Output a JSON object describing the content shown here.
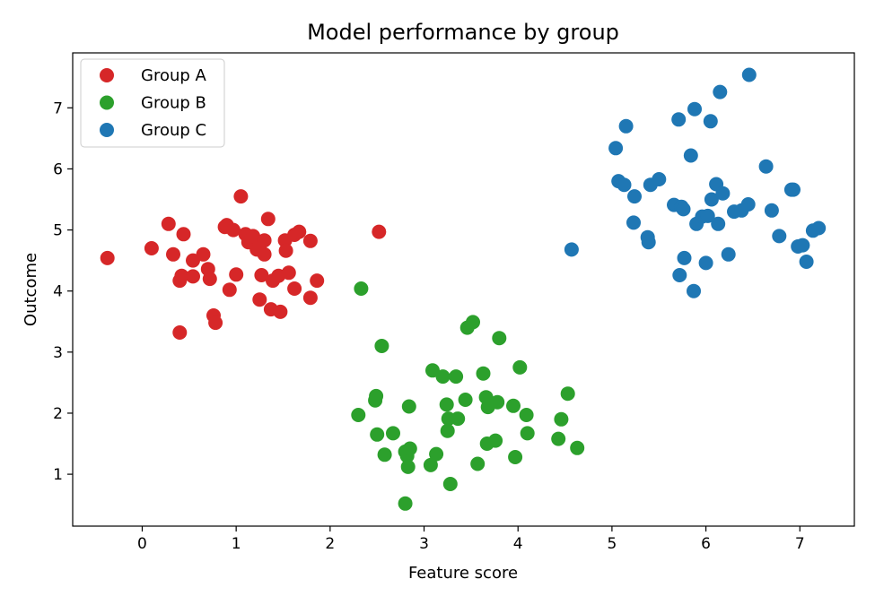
{
  "chart_data": {
    "type": "scatter",
    "title": "Model performance by group",
    "xlabel": "Feature score",
    "ylabel": "Outcome",
    "xlim": [
      -0.74,
      7.58
    ],
    "ylim": [
      0.15,
      7.9
    ],
    "xticks": [
      0,
      1,
      2,
      3,
      4,
      5,
      6,
      7
    ],
    "yticks": [
      1,
      2,
      3,
      4,
      5,
      6,
      7
    ],
    "grid": false,
    "legend_position": "top-left",
    "series": [
      {
        "name": "Group A",
        "color": "#d62728",
        "points": [
          [
            -0.37,
            4.54
          ],
          [
            0.1,
            4.7
          ],
          [
            0.28,
            5.1
          ],
          [
            0.33,
            4.6
          ],
          [
            0.4,
            4.17
          ],
          [
            0.42,
            4.25
          ],
          [
            0.44,
            4.93
          ],
          [
            0.4,
            3.32
          ],
          [
            0.54,
            4.5
          ],
          [
            0.54,
            4.24
          ],
          [
            0.65,
            4.6
          ],
          [
            0.7,
            4.36
          ],
          [
            0.72,
            4.2
          ],
          [
            0.76,
            3.6
          ],
          [
            0.78,
            3.48
          ],
          [
            0.88,
            5.05
          ],
          [
            0.9,
            5.08
          ],
          [
            0.93,
            4.02
          ],
          [
            0.97,
            5.0
          ],
          [
            1.0,
            4.27
          ],
          [
            1.05,
            5.55
          ],
          [
            1.1,
            4.93
          ],
          [
            1.13,
            4.8
          ],
          [
            1.18,
            4.9
          ],
          [
            1.22,
            4.68
          ],
          [
            1.25,
            4.75
          ],
          [
            1.25,
            3.86
          ],
          [
            1.27,
            4.26
          ],
          [
            1.3,
            4.83
          ],
          [
            1.3,
            4.6
          ],
          [
            1.34,
            5.18
          ],
          [
            1.37,
            3.7
          ],
          [
            1.39,
            4.17
          ],
          [
            1.45,
            4.25
          ],
          [
            1.47,
            3.66
          ],
          [
            1.52,
            4.83
          ],
          [
            1.53,
            4.66
          ],
          [
            1.56,
            4.3
          ],
          [
            1.62,
            4.04
          ],
          [
            1.62,
            4.92
          ],
          [
            1.67,
            4.97
          ],
          [
            1.79,
            4.82
          ],
          [
            1.79,
            3.89
          ],
          [
            1.86,
            4.17
          ],
          [
            2.52,
            4.97
          ]
        ]
      },
      {
        "name": "Group B",
        "color": "#2ca02c",
        "points": [
          [
            2.3,
            1.97
          ],
          [
            2.33,
            4.04
          ],
          [
            2.48,
            2.21
          ],
          [
            2.49,
            2.28
          ],
          [
            2.5,
            1.65
          ],
          [
            2.55,
            3.1
          ],
          [
            2.58,
            1.32
          ],
          [
            2.67,
            1.67
          ],
          [
            2.8,
            1.37
          ],
          [
            2.82,
            1.3
          ],
          [
            2.83,
            1.12
          ],
          [
            2.84,
            2.11
          ],
          [
            2.85,
            1.42
          ],
          [
            2.8,
            0.52
          ],
          [
            3.07,
            1.15
          ],
          [
            3.09,
            2.7
          ],
          [
            3.13,
            1.33
          ],
          [
            3.2,
            2.6
          ],
          [
            3.24,
            2.14
          ],
          [
            3.25,
            1.71
          ],
          [
            3.26,
            1.91
          ],
          [
            3.28,
            0.84
          ],
          [
            3.34,
            2.6
          ],
          [
            3.36,
            1.91
          ],
          [
            3.44,
            2.22
          ],
          [
            3.46,
            3.4
          ],
          [
            3.52,
            3.49
          ],
          [
            3.57,
            1.17
          ],
          [
            3.63,
            2.65
          ],
          [
            3.66,
            2.26
          ],
          [
            3.67,
            1.5
          ],
          [
            3.68,
            2.1
          ],
          [
            3.76,
            1.55
          ],
          [
            3.78,
            2.18
          ],
          [
            3.8,
            3.23
          ],
          [
            3.95,
            2.12
          ],
          [
            3.97,
            1.28
          ],
          [
            4.02,
            2.75
          ],
          [
            4.09,
            1.97
          ],
          [
            4.1,
            1.67
          ],
          [
            4.43,
            1.58
          ],
          [
            4.46,
            1.9
          ],
          [
            4.53,
            2.32
          ],
          [
            4.63,
            1.43
          ]
        ]
      },
      {
        "name": "Group C",
        "color": "#1f77b4",
        "points": [
          [
            4.57,
            4.68
          ],
          [
            5.04,
            6.34
          ],
          [
            5.07,
            5.8
          ],
          [
            5.13,
            5.74
          ],
          [
            5.15,
            6.7
          ],
          [
            5.23,
            5.12
          ],
          [
            5.24,
            5.55
          ],
          [
            5.38,
            4.88
          ],
          [
            5.39,
            4.8
          ],
          [
            5.41,
            5.74
          ],
          [
            5.5,
            5.83
          ],
          [
            5.66,
            5.41
          ],
          [
            5.71,
            6.81
          ],
          [
            5.72,
            4.26
          ],
          [
            5.74,
            5.38
          ],
          [
            5.76,
            5.34
          ],
          [
            5.77,
            4.54
          ],
          [
            5.84,
            6.22
          ],
          [
            5.87,
            4.0
          ],
          [
            5.88,
            6.98
          ],
          [
            5.9,
            5.1
          ],
          [
            5.96,
            5.22
          ],
          [
            6.0,
            4.46
          ],
          [
            6.02,
            5.23
          ],
          [
            6.05,
            6.78
          ],
          [
            6.06,
            5.5
          ],
          [
            6.11,
            5.75
          ],
          [
            6.13,
            5.1
          ],
          [
            6.15,
            7.26
          ],
          [
            6.18,
            5.6
          ],
          [
            6.24,
            4.6
          ],
          [
            6.3,
            5.3
          ],
          [
            6.38,
            5.32
          ],
          [
            6.45,
            5.42
          ],
          [
            6.46,
            7.54
          ],
          [
            6.64,
            6.04
          ],
          [
            6.7,
            5.32
          ],
          [
            6.78,
            4.9
          ],
          [
            6.91,
            5.66
          ],
          [
            6.93,
            5.66
          ],
          [
            6.98,
            4.73
          ],
          [
            7.03,
            4.75
          ],
          [
            7.07,
            4.48
          ],
          [
            7.14,
            4.99
          ],
          [
            7.2,
            5.03
          ]
        ]
      }
    ]
  }
}
